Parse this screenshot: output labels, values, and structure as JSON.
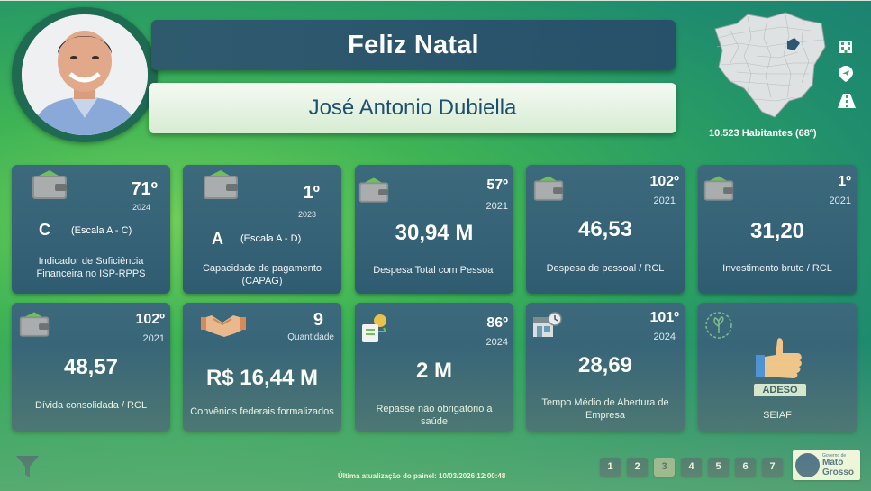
{
  "header": {
    "title": "Feliz Natal",
    "mayor_name": "José Antonio Dubiella"
  },
  "map": {
    "population": "10.523 Habitantes (68º)",
    "icons": [
      "building-icon",
      "airport-icon",
      "road-icon"
    ]
  },
  "cards": [
    {
      "icon": "wallet-icon",
      "rank": "71º",
      "year": "2024",
      "letter": "C",
      "scale": "(Escala A - C)",
      "label": "Indicador de Suficiência Financeira no ISP-RPPS"
    },
    {
      "icon": "wallet-icon",
      "rank": "1º",
      "year": "2023",
      "letter": "A",
      "scale": "(Escala A - D)",
      "label": "Capacidade de pagamento (CAPAG)"
    },
    {
      "icon": "wallet-icon",
      "rank": "57º",
      "year": "2021",
      "value": "30,94 M",
      "label": "Despesa Total com Pessoal"
    },
    {
      "icon": "wallet-icon",
      "rank": "102º",
      "year": "2021",
      "value": "46,53",
      "label": "Despesa de pessoal / RCL"
    },
    {
      "icon": "wallet-icon",
      "rank": "1º",
      "year": "2021",
      "value": "31,20",
      "label": "Investimento bruto / RCL"
    },
    {
      "icon": "wallet-icon",
      "rank": "102º",
      "year": "2021",
      "value": "48,57",
      "label": "Dívida consolidada / RCL"
    },
    {
      "icon": "handshake-icon",
      "rank": "9",
      "qty_label": "Quantidade",
      "value": "R$ 16,44 M",
      "label": "Convênios federais formalizados"
    },
    {
      "icon": "health-payment-icon",
      "rank": "86º",
      "year": "2024",
      "value": "2 M",
      "label": "Repasse não obrigatório a saúde"
    },
    {
      "icon": "store-clock-icon",
      "rank": "101º",
      "year": "2024",
      "value": "28,69",
      "label": "Tempo Médio de Abertura de Empresa"
    },
    {
      "icon": "thumbs-up-icon",
      "badge": "ADESO",
      "label": "SEIAF"
    }
  ],
  "footer": {
    "updated": "Última atualização do painel: 10/03/2026 12:00:48",
    "pages": [
      "1",
      "2",
      "3",
      "4",
      "5",
      "6",
      "7"
    ],
    "active_page": "3",
    "logo_small": "Governo de",
    "logo_line1": "Mato",
    "logo_line2": "Grosso"
  },
  "colors": {
    "card_bg": "#335f74",
    "title_banner": "#2b556c",
    "name_text": "#1f4f70",
    "accent_green": "#3fb455"
  }
}
